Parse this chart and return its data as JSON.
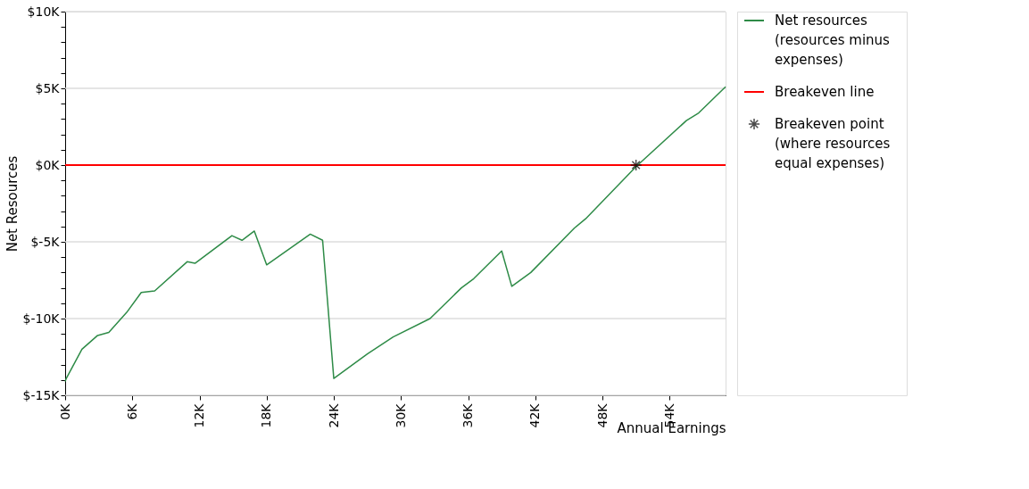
{
  "chart_data": {
    "type": "line",
    "xlabel": "Annual Earnings",
    "ylabel": "Net Resources",
    "xlim": [
      0,
      59
    ],
    "ylim": [
      -15,
      10
    ],
    "xticks": [
      {
        "value": 0,
        "label": "0K"
      },
      {
        "value": 6,
        "label": "6K"
      },
      {
        "value": 12,
        "label": "12K"
      },
      {
        "value": 18,
        "label": "18K"
      },
      {
        "value": 24,
        "label": "24K"
      },
      {
        "value": 30,
        "label": "30K"
      },
      {
        "value": 36,
        "label": "36K"
      },
      {
        "value": 42,
        "label": "42K"
      },
      {
        "value": 48,
        "label": "48K"
      },
      {
        "value": 54,
        "label": "54K"
      }
    ],
    "yticks": [
      {
        "value": -15,
        "label": "$-15K"
      },
      {
        "value": -14,
        "label": null
      },
      {
        "value": -13,
        "label": null
      },
      {
        "value": -12,
        "label": null
      },
      {
        "value": -11,
        "label": null
      },
      {
        "value": -10,
        "label": "$-10K"
      },
      {
        "value": -9,
        "label": null
      },
      {
        "value": -8,
        "label": null
      },
      {
        "value": -7,
        "label": null
      },
      {
        "value": -6,
        "label": null
      },
      {
        "value": -5,
        "label": "$-5K"
      },
      {
        "value": -4,
        "label": null
      },
      {
        "value": -3,
        "label": null
      },
      {
        "value": -2,
        "label": null
      },
      {
        "value": -1,
        "label": null
      },
      {
        "value": 0,
        "label": "$0K"
      },
      {
        "value": 1,
        "label": null
      },
      {
        "value": 2,
        "label": null
      },
      {
        "value": 3,
        "label": null
      },
      {
        "value": 4,
        "label": null
      },
      {
        "value": 5,
        "label": "$5K"
      },
      {
        "value": 6,
        "label": null
      },
      {
        "value": 7,
        "label": null
      },
      {
        "value": 8,
        "label": null
      },
      {
        "value": 9,
        "label": null
      },
      {
        "value": 10,
        "label": "$10K"
      }
    ],
    "grid": "y",
    "legend": "right",
    "line_style": "solid",
    "series": [
      {
        "name": "Net resources (resources minus expenses)",
        "color": "#2e8b47",
        "marker": "none",
        "x": [
          0,
          0.1,
          1.5,
          2.9,
          3.9,
          5.5,
          6.8,
          8.0,
          10.9,
          11.6,
          14.9,
          15.8,
          16.9,
          18.0,
          21.9,
          23.0,
          24.0,
          27.0,
          29.3,
          32.6,
          35.4,
          36.5,
          39.0,
          39.9,
          41.6,
          45.5,
          46.5,
          51.0,
          55.5,
          56.6,
          59.0
        ],
        "values": [
          -14.1,
          -13.9,
          -12.0,
          -11.1,
          -10.9,
          -9.6,
          -8.3,
          -8.2,
          -6.3,
          -6.4,
          -4.6,
          -4.9,
          -4.3,
          -6.5,
          -4.5,
          -4.9,
          -13.9,
          -12.3,
          -11.2,
          -10.0,
          -8.0,
          -7.4,
          -5.6,
          -7.9,
          -7.0,
          -4.1,
          -3.5,
          -0.1,
          2.9,
          3.4,
          5.1
        ]
      },
      {
        "name": "Breakeven point (where resources equal expenses)",
        "color": "#000000",
        "type": "scatter",
        "marker": "cross",
        "x": [
          51.0
        ],
        "values": [
          0
        ]
      }
    ],
    "ref_lines": [
      {
        "axis": "y",
        "value": 0,
        "label": "Breakeven line",
        "color": "#ff0000"
      }
    ]
  }
}
